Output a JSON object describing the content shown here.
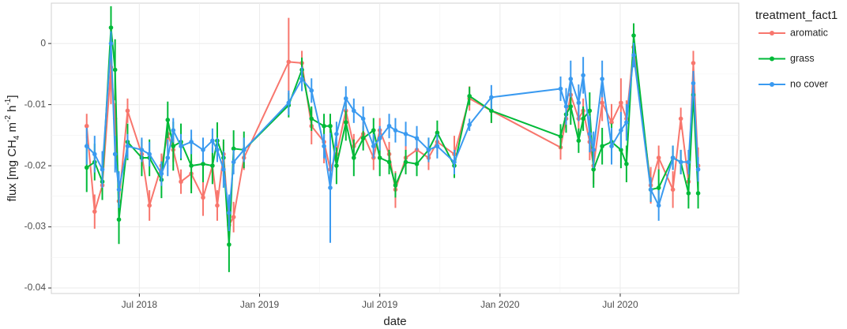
{
  "chart_data": {
    "type": "line",
    "x_label": "date",
    "y_label": [
      "flux [mg CH",
      "4",
      " m",
      "-2",
      " h",
      "-1",
      "]"
    ],
    "legend_title": "treatment_fact1",
    "legend_position": "right",
    "grid": true,
    "xlim": [
      2018.134,
      2020.993
    ],
    "ylim": [
      -0.0409,
      0.0066
    ],
    "xticks": [
      {
        "value": 2018.5,
        "label": "Jul 2018"
      },
      {
        "value": 2019.0,
        "label": "Jan 2019"
      },
      {
        "value": 2019.5,
        "label": "Jul 2019"
      },
      {
        "value": 2020.0,
        "label": "Jan 2020"
      },
      {
        "value": 2020.5,
        "label": "Jul 2020"
      }
    ],
    "yticks": [
      0,
      -0.01,
      -0.02,
      -0.03,
      -0.04
    ],
    "x": [
      2018.281,
      2018.314,
      2018.346,
      2018.382,
      2018.399,
      2018.415,
      2018.451,
      2018.51,
      2018.542,
      2018.592,
      2018.618,
      2018.641,
      2018.673,
      2018.716,
      2018.765,
      2018.804,
      2018.824,
      2018.85,
      2018.873,
      2018.892,
      2018.935,
      2019.121,
      2019.176,
      2019.216,
      2019.268,
      2019.294,
      2019.32,
      2019.359,
      2019.392,
      2019.431,
      2019.474,
      2019.5,
      2019.539,
      2019.565,
      2019.608,
      2019.654,
      2019.703,
      2019.739,
      2019.81,
      2019.873,
      2019.964,
      2020.252,
      2020.275,
      2020.294,
      2020.327,
      2020.346,
      2020.373,
      2020.389,
      2020.425,
      2020.464,
      2020.503,
      2020.526,
      2020.556,
      2020.627,
      2020.66,
      2020.719,
      2020.752,
      2020.784,
      2020.804,
      2020.824
    ],
    "series": [
      {
        "name": "aromatic",
        "color": "#F8766D",
        "values": [
          -0.0135,
          -0.0275,
          -0.0232,
          -0.0039,
          -0.0123,
          -0.0258,
          -0.011,
          -0.0181,
          -0.0265,
          -0.02,
          -0.0148,
          -0.0174,
          -0.0226,
          -0.0213,
          -0.0252,
          -0.02,
          -0.0265,
          -0.0181,
          -0.0297,
          -0.0284,
          -0.0187,
          -0.003,
          -0.0032,
          -0.0135,
          -0.0161,
          -0.0206,
          -0.0181,
          -0.011,
          -0.0168,
          -0.0148,
          -0.0187,
          -0.0142,
          -0.0181,
          -0.0239,
          -0.0187,
          -0.0174,
          -0.0187,
          -0.0161,
          -0.0181,
          -0.009,
          -0.011,
          -0.017,
          -0.0123,
          -0.0084,
          -0.0123,
          -0.011,
          -0.0161,
          -0.02,
          -0.0097,
          -0.0129,
          -0.0097,
          -0.0123,
          -0.0006,
          -0.0232,
          -0.0187,
          -0.0239,
          -0.0123,
          -0.0226,
          -0.0032,
          -0.02
        ],
        "errors": [
          0.002,
          0.0028,
          0.002,
          0.006,
          0.0025,
          0.003,
          0.002,
          0.002,
          0.0025,
          0.002,
          0.002,
          0.002,
          0.002,
          0.0025,
          0.003,
          0.002,
          0.0025,
          0.002,
          0.003,
          0.0025,
          0.002,
          0.0072,
          0.002,
          0.003,
          0.0035,
          0.0025,
          0.002,
          0.002,
          0.002,
          0.002,
          0.002,
          0.002,
          0.002,
          0.003,
          0.002,
          0.002,
          0.002,
          0.002,
          0.003,
          0.002,
          0.002,
          0.002,
          0.002,
          0.003,
          0.003,
          0.002,
          0.003,
          0.003,
          0.003,
          0.003,
          0.004,
          0.003,
          0.002,
          0.003,
          0.002,
          0.003,
          0.0018,
          0.003,
          0.002,
          0.003
        ]
      },
      {
        "name": "grass",
        "color": "#00BA38",
        "values": [
          -0.0203,
          -0.0194,
          -0.0226,
          0.0026,
          -0.0043,
          -0.0288,
          -0.0161,
          -0.0187,
          -0.0187,
          -0.0223,
          -0.0125,
          -0.0168,
          -0.0161,
          -0.02,
          -0.0197,
          -0.02,
          -0.0159,
          -0.0187,
          -0.0329,
          -0.0172,
          -0.0174,
          -0.0101,
          -0.0043,
          -0.0123,
          -0.0135,
          -0.0135,
          -0.02,
          -0.0129,
          -0.0187,
          -0.0155,
          -0.0142,
          -0.0187,
          -0.0194,
          -0.0232,
          -0.0194,
          -0.0197,
          -0.0174,
          -0.0146,
          -0.02,
          -0.0086,
          -0.011,
          -0.0152,
          -0.0116,
          -0.0103,
          -0.0159,
          -0.0123,
          -0.011,
          -0.0206,
          -0.0168,
          -0.0161,
          -0.0174,
          -0.0197,
          0.0013,
          -0.0239,
          -0.0236,
          -0.0187,
          -0.0194,
          -0.0245,
          -0.0084,
          -0.0245
        ],
        "errors": [
          0.004,
          0.003,
          0.003,
          0.0035,
          0.005,
          0.004,
          0.003,
          0.003,
          0.003,
          0.003,
          0.003,
          0.004,
          0.003,
          0.0045,
          0.003,
          0.003,
          0.003,
          0.003,
          0.0045,
          0.003,
          0.003,
          0.002,
          0.002,
          0.002,
          0.002,
          0.002,
          0.003,
          0.003,
          0.003,
          0.002,
          0.002,
          0.003,
          0.002,
          0.002,
          0.002,
          0.002,
          0.002,
          0.002,
          0.002,
          0.0015,
          0.002,
          0.002,
          0.003,
          0.003,
          0.002,
          0.002,
          0.003,
          0.003,
          0.003,
          0.003,
          0.003,
          0.003,
          0.002,
          0.002,
          0.003,
          0.002,
          0.002,
          0.0025,
          0.002,
          0.0025
        ]
      },
      {
        "name": "no cover",
        "color": "#3A9AF0",
        "values": [
          -0.0168,
          -0.0181,
          -0.0206,
          0.0,
          -0.0181,
          -0.0239,
          -0.0168,
          -0.0174,
          -0.0181,
          -0.0213,
          -0.0187,
          -0.0142,
          -0.0168,
          -0.0161,
          -0.0174,
          -0.0159,
          -0.0174,
          -0.0206,
          -0.0277,
          -0.0194,
          -0.0174,
          -0.0097,
          -0.0058,
          -0.0077,
          -0.0168,
          -0.0236,
          -0.0148,
          -0.009,
          -0.011,
          -0.0123,
          -0.0168,
          -0.0155,
          -0.0135,
          -0.0142,
          -0.0148,
          -0.0155,
          -0.0174,
          -0.0168,
          -0.0194,
          -0.0133,
          -0.0088,
          -0.0074,
          -0.0103,
          -0.0058,
          -0.0097,
          -0.0052,
          -0.0148,
          -0.0174,
          -0.0058,
          -0.0168,
          -0.0142,
          -0.0129,
          -0.0019,
          -0.0239,
          -0.0265,
          -0.0187,
          -0.0194,
          -0.0194,
          -0.0065,
          -0.0206
        ],
        "errors": [
          0.003,
          0.003,
          0.003,
          0.002,
          0.003,
          0.003,
          0.002,
          0.002,
          0.002,
          0.002,
          0.003,
          0.002,
          0.002,
          0.002,
          0.002,
          0.002,
          0.002,
          0.003,
          0.003,
          0.002,
          0.002,
          0.002,
          0.002,
          0.002,
          0.002,
          0.009,
          0.002,
          0.002,
          0.002,
          0.002,
          0.002,
          0.002,
          0.002,
          0.002,
          0.002,
          0.002,
          0.002,
          0.002,
          0.002,
          0.001,
          0.002,
          0.002,
          0.003,
          0.003,
          0.003,
          0.003,
          0.003,
          0.003,
          0.003,
          0.003,
          0.003,
          0.003,
          0.002,
          0.002,
          0.0025,
          0.002,
          0.002,
          0.002,
          0.002,
          0.002
        ]
      }
    ]
  }
}
